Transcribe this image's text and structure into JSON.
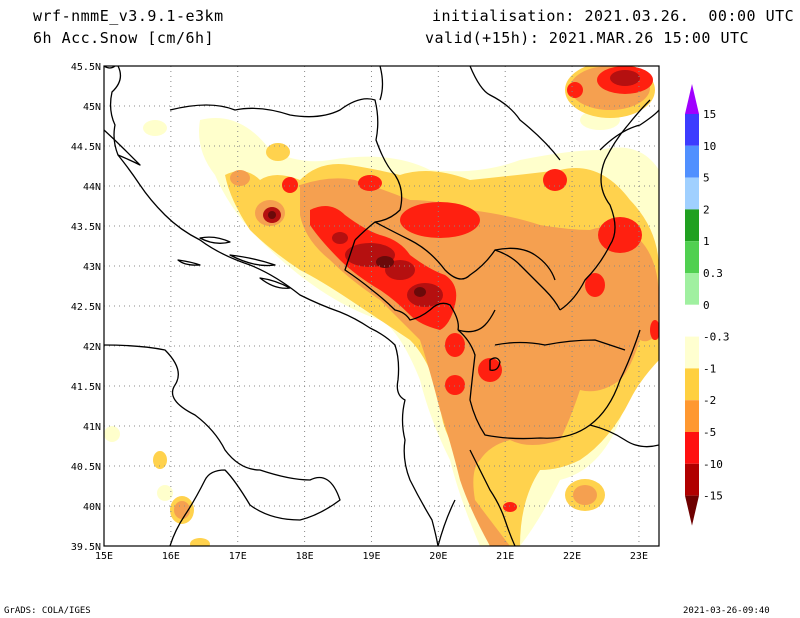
{
  "header": {
    "model": "wrf-nmmE_v3.9.1-e3km",
    "field": "6h Acc.Snow [cm/6h]",
    "init": "initialisation: 2021.03.26.  00:00 UTC",
    "valid": "valid(+15h): 2021.MAR.26 15:00 UTC"
  },
  "footer": {
    "left": "GrADS: COLA/IGES",
    "right": "2021-03-26-09:40"
  },
  "axes": {
    "lon_labels": [
      "15E",
      "16E",
      "17E",
      "18E",
      "19E",
      "20E",
      "21E",
      "22E",
      "23E"
    ],
    "lat_labels": [
      "45.5N",
      "45N",
      "44.5N",
      "44N",
      "43.5N",
      "43N",
      "42.5N",
      "42N",
      "41.5N",
      "41N",
      "40.5N",
      "40N",
      "39.5N"
    ],
    "lon_range": [
      15,
      23.3
    ],
    "lat_range": [
      39.5,
      45.5
    ]
  },
  "legend": {
    "labels": [
      "15",
      "10",
      "5",
      "2",
      "1",
      "0.3",
      "0",
      "-0.3",
      "-1",
      "-2",
      "-5",
      "-10",
      "-15"
    ],
    "colors": [
      "#a000ff",
      "#3c3cff",
      "#5090ff",
      "#a0d0ff",
      "#20a020",
      "#50d050",
      "#a0f0a0",
      "#ffffff",
      "#ffffd0",
      "#ffd040",
      "#ff9830",
      "#ff1010",
      "#b00000",
      "#6e0000"
    ]
  },
  "map_colors": {
    "pale": "#ffffcc",
    "yellow": "#ffd24d",
    "orange": "#f5a050",
    "red": "#ff2010",
    "darkred": "#b51010",
    "maroon": "#6a0a0a"
  }
}
